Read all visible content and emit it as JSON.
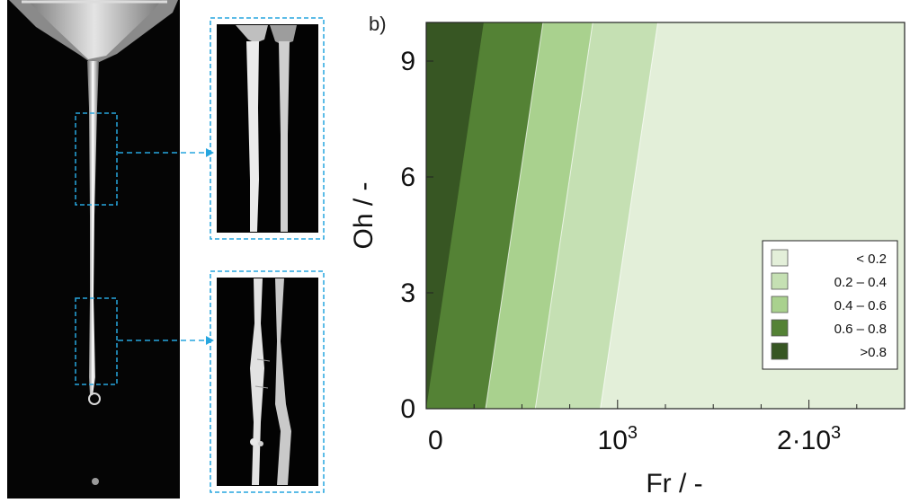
{
  "panel_label": "b)",
  "chart_data": {
    "type": "heatmap",
    "title": "",
    "xlabel": "Fr / -",
    "ylabel": "Oh / -",
    "xlim": [
      0,
      2500
    ],
    "ylim": [
      0,
      10
    ],
    "x_ticks": [
      {
        "value": 0,
        "base": "0",
        "exp": ""
      },
      {
        "value": 1000,
        "base": "10",
        "exp": "3"
      },
      {
        "value": 2000,
        "base": "2·10",
        "exp": "3"
      }
    ],
    "y_ticks": [
      {
        "value": 0,
        "label": "0"
      },
      {
        "value": 3,
        "label": "3"
      },
      {
        "value": 6,
        "label": "6"
      },
      {
        "value": 9,
        "label": "9"
      }
    ],
    "boundary_slope_Oh_per_Fr": 0.0333,
    "regions": [
      {
        "label": "< 0.2",
        "color": "#e3efd9",
        "fr_at_oh0_max": null
      },
      {
        "label": "0.2 – 0.4",
        "color": "#c5e0b3",
        "fr_at_oh0_max": 910
      },
      {
        "label": "0.4 – 0.6",
        "color": "#a9d18e",
        "fr_at_oh0_max": 570
      },
      {
        "label": "0.6 – 0.8",
        "color": "#548235",
        "fr_at_oh0_max": 310
      },
      {
        "label": ">0.8",
        "color": "#375623",
        "fr_at_oh0_max": 0
      }
    ],
    "boundaries_fr_at_oh0": [
      0,
      310,
      570,
      910
    ],
    "grid": false,
    "legend_position": "bottom-right"
  },
  "photo": {
    "description_icon": "liquid-jet-photo",
    "callout_color": "#27a6df"
  }
}
